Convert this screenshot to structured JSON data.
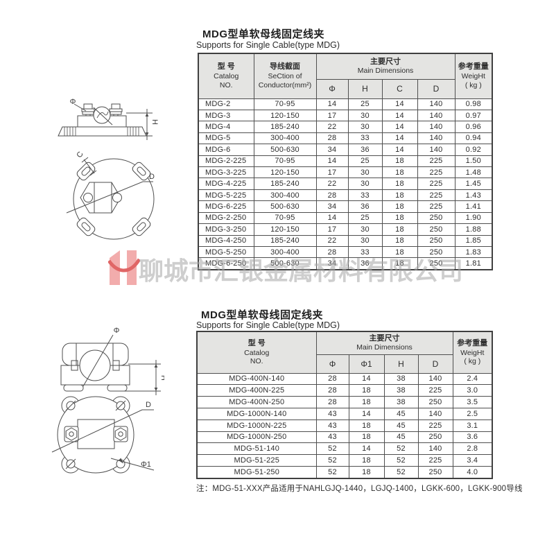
{
  "watermark": {
    "logo_letter": "H",
    "company": "聊城市汇银金属材料有限公司",
    "logo_pink": "#f2acac",
    "logo_red": "#e06666"
  },
  "section1": {
    "title": "MDG型单软母线固定线夹",
    "subtitle": "Supports for Single Cable(type MDG)",
    "drawing_labels": {
      "phi": "Φ",
      "h": "H",
      "c": "C",
      "d": "D"
    },
    "table": {
      "headers": {
        "catalog_zh": "型 号",
        "catalog_en": "Catalog\nNO.",
        "conductor_zh": "导线截面",
        "conductor_en": "SeCtion of\nConductor(mm²)",
        "main_dims_zh": "主要尺寸",
        "main_dims_en": "Main Dimensions",
        "weight_zh": "参考重量",
        "weight_en": "WeigHt\n( kg )",
        "dims": [
          "Φ",
          "H",
          "C",
          "D"
        ]
      },
      "rows": [
        [
          "MDG-2",
          "70-95",
          "14",
          "25",
          "14",
          "140",
          "0.98"
        ],
        [
          "MDG-3",
          "120-150",
          "17",
          "30",
          "14",
          "140",
          "0.97"
        ],
        [
          "MDG-4",
          "185-240",
          "22",
          "30",
          "14",
          "140",
          "0.96"
        ],
        [
          "MDG-5",
          "300-400",
          "28",
          "33",
          "14",
          "140",
          "0.94"
        ],
        [
          "MDG-6",
          "500-630",
          "34",
          "36",
          "14",
          "140",
          "0.92"
        ],
        [
          "MDG-2-225",
          "70-95",
          "14",
          "25",
          "18",
          "225",
          "1.50"
        ],
        [
          "MDG-3-225",
          "120-150",
          "17",
          "30",
          "18",
          "225",
          "1.48"
        ],
        [
          "MDG-4-225",
          "185-240",
          "22",
          "30",
          "18",
          "225",
          "1.45"
        ],
        [
          "MDG-5-225",
          "300-400",
          "28",
          "33",
          "18",
          "225",
          "1.43"
        ],
        [
          "MDG-6-225",
          "500-630",
          "34",
          "36",
          "18",
          "225",
          "1.41"
        ],
        [
          "MDG-2-250",
          "70-95",
          "14",
          "25",
          "18",
          "250",
          "1.90"
        ],
        [
          "MDG-3-250",
          "120-150",
          "17",
          "30",
          "18",
          "250",
          "1.88"
        ],
        [
          "MDG-4-250",
          "185-240",
          "22",
          "30",
          "18",
          "250",
          "1.85"
        ],
        [
          "MDG-5-250",
          "300-400",
          "28",
          "33",
          "18",
          "250",
          "1.83"
        ],
        [
          "MDG-6-250",
          "500-630",
          "34",
          "36",
          "18",
          "250",
          "1.81"
        ]
      ]
    }
  },
  "section2": {
    "title": "MDG型单软母线固定线夹",
    "subtitle": "Supports for Single Cable(type MDG)",
    "drawing_labels": {
      "phi": "Φ",
      "h": "H",
      "d": "D",
      "phi1": "Φ1"
    },
    "table": {
      "headers": {
        "catalog_zh": "型 号",
        "catalog_en": "Catalog\nNO.",
        "main_dims_zh": "主要尺寸",
        "main_dims_en": "Main Dimensions",
        "weight_zh": "参考重量",
        "weight_en": "WeigHt\n( kg )",
        "dims": [
          "Φ",
          "Φ1",
          "H",
          "D"
        ]
      },
      "rows": [
        [
          "MDG-400N-140",
          "28",
          "14",
          "38",
          "140",
          "2.4"
        ],
        [
          "MDG-400N-225",
          "28",
          "18",
          "38",
          "225",
          "3.0"
        ],
        [
          "MDG-400N-250",
          "28",
          "18",
          "38",
          "250",
          "3.5"
        ],
        [
          "MDG-1000N-140",
          "43",
          "14",
          "45",
          "140",
          "2.5"
        ],
        [
          "MDG-1000N-225",
          "43",
          "18",
          "45",
          "225",
          "3.1"
        ],
        [
          "MDG-1000N-250",
          "43",
          "18",
          "45",
          "250",
          "3.6"
        ],
        [
          "MDG-51-140",
          "52",
          "14",
          "52",
          "140",
          "2.8"
        ],
        [
          "MDG-51-225",
          "52",
          "18",
          "52",
          "225",
          "3.4"
        ],
        [
          "MDG-51-250",
          "52",
          "18",
          "52",
          "250",
          "4.0"
        ]
      ]
    },
    "note": "注：MDG-51-XXX产品适用于NAHLGJQ-1440，LGJQ-1400，LGKK-600，LGKK-900导线"
  }
}
